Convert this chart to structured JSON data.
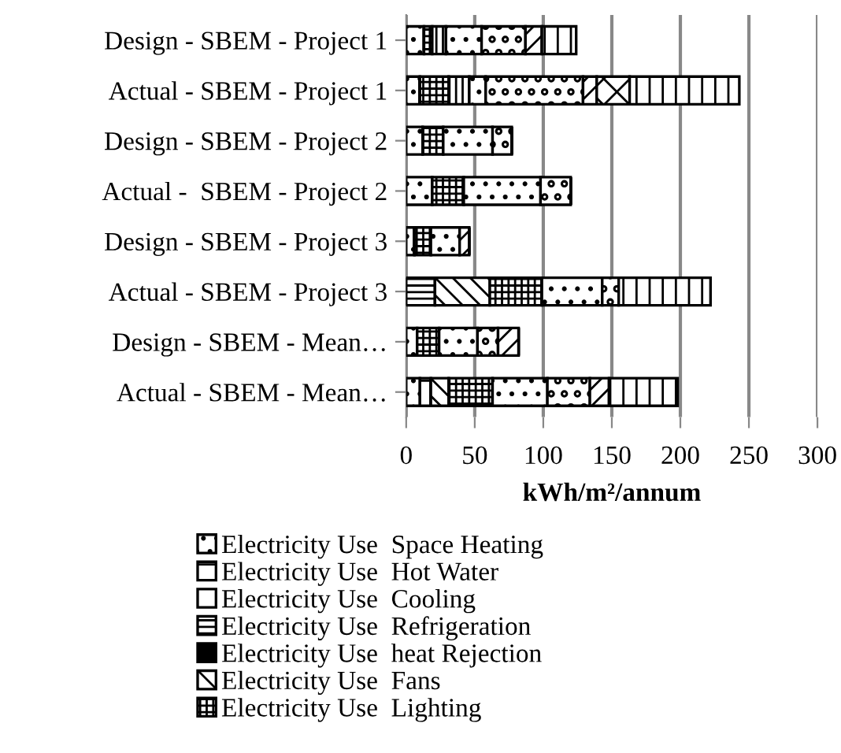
{
  "chart_data": {
    "type": "bar",
    "orientation": "horizontal",
    "stacked": true,
    "xlabel": "kWh/m²/annum",
    "categories": [
      "Design - SBEM - Project 1",
      "Actual - SBEM - Project 1",
      "Design - SBEM - Project 2",
      "Actual -  SBEM - Project 2",
      "Design - SBEM - Project 3",
      "Actual - SBEM - Project 3",
      "Design - SBEM - Mean…",
      "Actual - SBEM - Mean…"
    ],
    "series": [
      {
        "name": "Electricity Use  Space Heating",
        "color": "#000000",
        "values": [
          13,
          10,
          12,
          19,
          6,
          0,
          8,
          10
        ]
      },
      {
        "name": "Electricity Use  Hot Water",
        "color": "#000000",
        "values": [
          0,
          0,
          0,
          0,
          0,
          0,
          0,
          8
        ]
      },
      {
        "name": "Electricity Use  Cooling",
        "color": "#ffffff",
        "values": [
          0,
          0,
          0,
          0,
          0,
          0,
          0,
          0
        ]
      },
      {
        "name": "Electricity Use  Refrigeration",
        "color": "#000000",
        "values": [
          0,
          0,
          0,
          0,
          0,
          21,
          0,
          0
        ]
      },
      {
        "name": "Electricity Use  heat Rejection",
        "color": "#000000",
        "values": [
          0,
          0,
          0,
          0,
          0,
          0,
          0,
          0
        ]
      },
      {
        "name": "Electricity Use  Fans",
        "color": "#000000",
        "values": [
          0,
          0,
          0,
          0,
          0,
          40,
          0,
          13
        ]
      },
      {
        "name": "Electricity Use  Lighting",
        "color": "#000000",
        "values": [
          6,
          21,
          15,
          23,
          12,
          38,
          16,
          32
        ]
      },
      {
        "color": "#000000",
        "values": [
          10,
          15,
          0,
          0,
          0,
          0,
          0,
          0
        ]
      },
      {
        "color": "#000000",
        "values": [
          26,
          12,
          36,
          56,
          21,
          44,
          28,
          40
        ]
      },
      {
        "color": "#000000",
        "values": [
          32,
          71,
          14,
          22,
          0,
          12,
          15,
          31
        ]
      },
      {
        "color": "#000000",
        "values": [
          12,
          10,
          0,
          0,
          7,
          0,
          15,
          14
        ]
      },
      {
        "color": "#000000",
        "values": [
          0,
          24,
          0,
          0,
          0,
          0,
          0,
          0
        ]
      },
      {
        "color": "#000000",
        "values": [
          25,
          80,
          0,
          0,
          0,
          67,
          0,
          50
        ]
      }
    ],
    "xlim": [
      0,
      300
    ],
    "xticks": [
      0,
      50,
      100,
      150,
      200,
      250,
      300
    ],
    "grid": "x",
    "legend": "bottom"
  }
}
